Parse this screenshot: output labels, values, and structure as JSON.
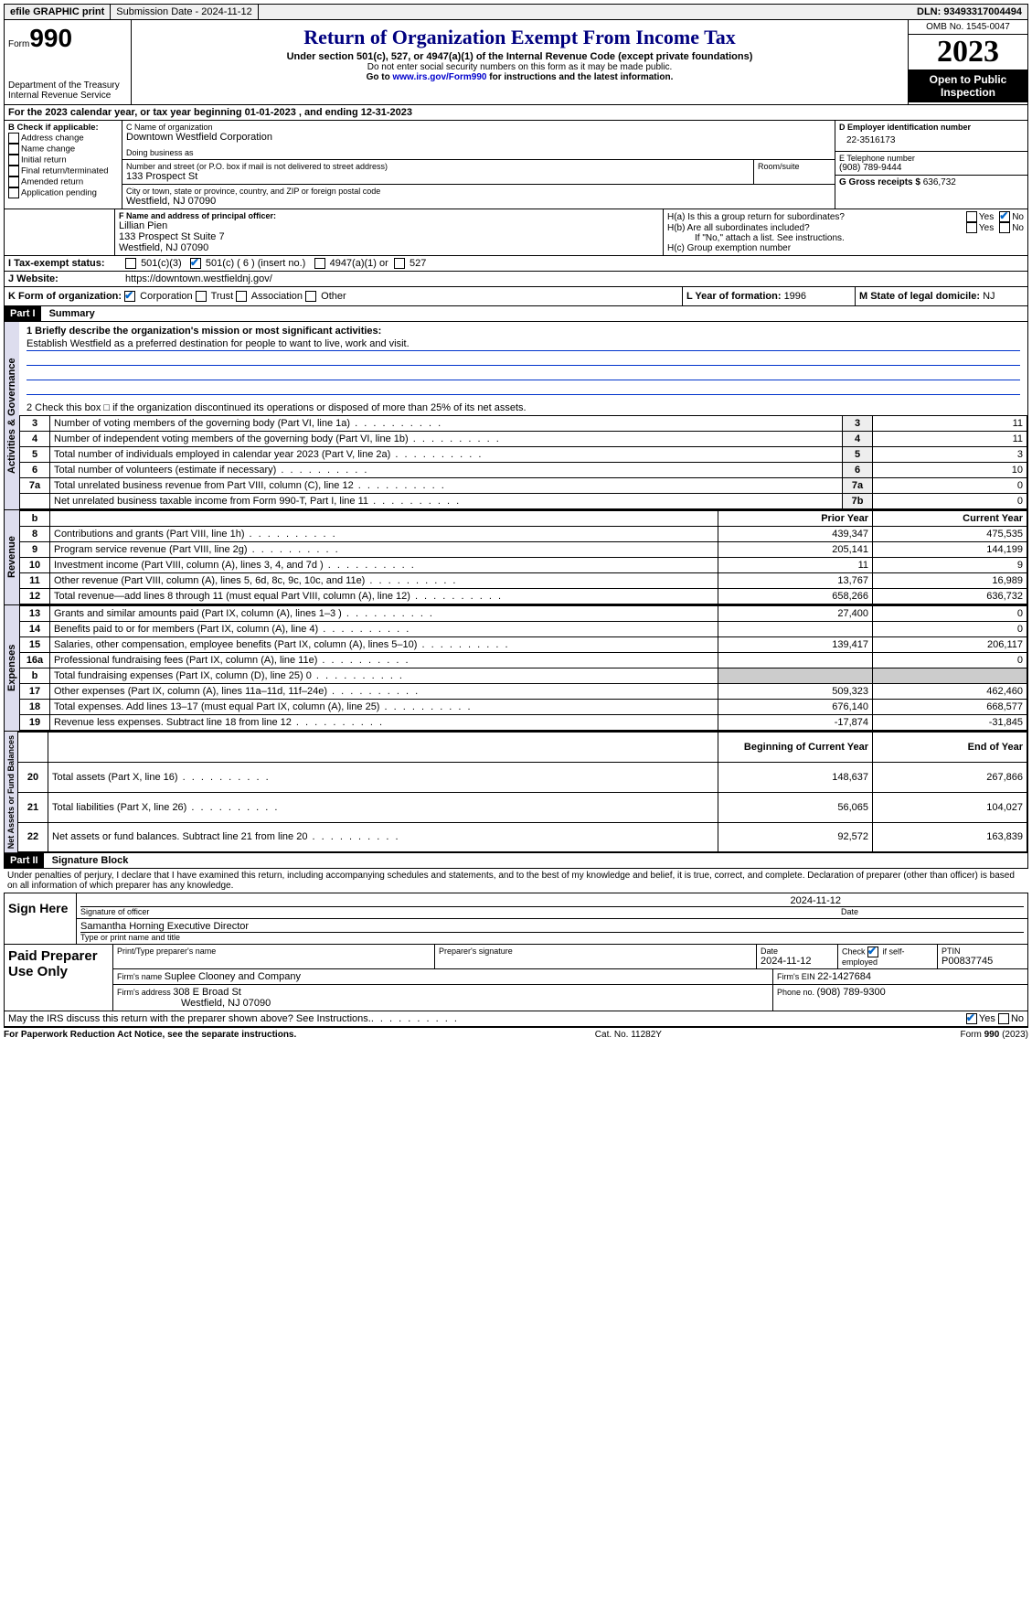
{
  "topbar": {
    "efile": "efile GRAPHIC print",
    "submission_label": "Submission Date - ",
    "submission_date": "2024-11-12",
    "dln_label": "DLN: ",
    "dln": "93493317004494"
  },
  "header": {
    "form_prefix": "Form",
    "form_number": "990",
    "dept": "Department of the Treasury Internal Revenue Service",
    "title": "Return of Organization Exempt From Income Tax",
    "sub": "Under section 501(c), 527, or 4947(a)(1) of the Internal Revenue Code (except private foundations)",
    "ssn_note": "Do not enter social security numbers on this form as it may be made public.",
    "goto": "Go to ",
    "goto_link": "www.irs.gov/Form990",
    "goto_suffix": " for instructions and the latest information.",
    "omb": "OMB No. 1545-0047",
    "year": "2023",
    "open": "Open to Public Inspection"
  },
  "periodA": "For the 2023 calendar year, or tax year beginning 01-01-2023   , and ending 12-31-2023",
  "boxB": {
    "title": "B Check if applicable:",
    "opts": [
      "Address change",
      "Name change",
      "Initial return",
      "Final return/terminated",
      "Amended return",
      "Application pending"
    ]
  },
  "boxC": {
    "name_label": "C Name of organization",
    "name": "Downtown Westfield Corporation",
    "dba_label": "Doing business as",
    "street_label": "Number and street (or P.O. box if mail is not delivered to street address)",
    "room_label": "Room/suite",
    "street": "133 Prospect St",
    "city_label": "City or town, state or province, country, and ZIP or foreign postal code",
    "city": "Westfield, NJ  07090"
  },
  "boxD": {
    "label": "D Employer identification number",
    "value": "22-3516173"
  },
  "boxE": {
    "label": "E Telephone number",
    "value": "(908) 789-9444"
  },
  "boxG": {
    "label": "G Gross receipts $ ",
    "value": "636,732"
  },
  "boxF": {
    "label": "F  Name and address of principal officer:",
    "name": "Lillian Pien",
    "addr1": "133 Prospect St Suite 7",
    "addr2": "Westfield, NJ  07090"
  },
  "boxH": {
    "a": "H(a)  Is this a group return for subordinates?",
    "b": "H(b)  Are all subordinates included?",
    "note": "If \"No,\" attach a list. See instructions.",
    "c": "H(c)  Group exemption number "
  },
  "taxExempt": {
    "label": "I  Tax-exempt status:",
    "c3": "501(c)(3)",
    "c": "501(c) ( 6 ) (insert no.)",
    "a": "4947(a)(1) or",
    "527": "527"
  },
  "website": {
    "label": "J  Website: ",
    "value": "https://downtown.westfieldnj.gov/"
  },
  "boxK": {
    "label": "K Form of organization:",
    "opts": [
      "Corporation",
      "Trust",
      "Association",
      "Other"
    ]
  },
  "boxL": {
    "label": "L Year of formation: ",
    "value": "1996"
  },
  "boxM": {
    "label": "M State of legal domicile: ",
    "value": "NJ"
  },
  "part1": {
    "bar": "Part I",
    "title": "Summary"
  },
  "mission": {
    "prompt": "1  Briefly describe the organization's mission or most significant activities:",
    "text": "Establish Westfield as a preferred destination for people to want to live, work and visit."
  },
  "line2": "2  Check this box  □  if the organization discontinued its operations or disposed of more than 25% of its net assets.",
  "gov_rows": [
    {
      "n": "3",
      "t": "Number of voting members of the governing body (Part VI, line 1a)",
      "rn": "3",
      "v": "11"
    },
    {
      "n": "4",
      "t": "Number of independent voting members of the governing body (Part VI, line 1b)",
      "rn": "4",
      "v": "11"
    },
    {
      "n": "5",
      "t": "Total number of individuals employed in calendar year 2023 (Part V, line 2a)",
      "rn": "5",
      "v": "3"
    },
    {
      "n": "6",
      "t": "Total number of volunteers (estimate if necessary)",
      "rn": "6",
      "v": "10"
    },
    {
      "n": "7a",
      "t": "Total unrelated business revenue from Part VIII, column (C), line 12",
      "rn": "7a",
      "v": "0"
    },
    {
      "n": "",
      "t": "Net unrelated business taxable income from Form 990-T, Part I, line 11",
      "rn": "7b",
      "v": "0"
    }
  ],
  "rev_header": {
    "b": "b",
    "prior": "Prior Year",
    "current": "Current Year"
  },
  "rev_rows": [
    {
      "n": "8",
      "t": "Contributions and grants (Part VIII, line 1h)",
      "p": "439,347",
      "c": "475,535"
    },
    {
      "n": "9",
      "t": "Program service revenue (Part VIII, line 2g)",
      "p": "205,141",
      "c": "144,199"
    },
    {
      "n": "10",
      "t": "Investment income (Part VIII, column (A), lines 3, 4, and 7d )",
      "p": "11",
      "c": "9"
    },
    {
      "n": "11",
      "t": "Other revenue (Part VIII, column (A), lines 5, 6d, 8c, 9c, 10c, and 11e)",
      "p": "13,767",
      "c": "16,989"
    },
    {
      "n": "12",
      "t": "Total revenue—add lines 8 through 11 (must equal Part VIII, column (A), line 12)",
      "p": "658,266",
      "c": "636,732"
    }
  ],
  "exp_rows": [
    {
      "n": "13",
      "t": "Grants and similar amounts paid (Part IX, column (A), lines 1–3 )",
      "p": "27,400",
      "c": "0"
    },
    {
      "n": "14",
      "t": "Benefits paid to or for members (Part IX, column (A), line 4)",
      "p": "",
      "c": "0"
    },
    {
      "n": "15",
      "t": "Salaries, other compensation, employee benefits (Part IX, column (A), lines 5–10)",
      "p": "139,417",
      "c": "206,117"
    },
    {
      "n": "16a",
      "t": "Professional fundraising fees (Part IX, column (A), line 11e)",
      "p": "",
      "c": "0"
    },
    {
      "n": "b",
      "t": "Total fundraising expenses (Part IX, column (D), line 25) 0",
      "p": "GRAY",
      "c": "GRAY"
    },
    {
      "n": "17",
      "t": "Other expenses (Part IX, column (A), lines 11a–11d, 11f–24e)",
      "p": "509,323",
      "c": "462,460"
    },
    {
      "n": "18",
      "t": "Total expenses. Add lines 13–17 (must equal Part IX, column (A), line 25)",
      "p": "676,140",
      "c": "668,577"
    },
    {
      "n": "19",
      "t": "Revenue less expenses. Subtract line 18 from line 12",
      "p": "-17,874",
      "c": "-31,845"
    }
  ],
  "net_header": {
    "prior": "Beginning of Current Year",
    "current": "End of Year"
  },
  "net_rows": [
    {
      "n": "20",
      "t": "Total assets (Part X, line 16)",
      "p": "148,637",
      "c": "267,866"
    },
    {
      "n": "21",
      "t": "Total liabilities (Part X, line 26)",
      "p": "56,065",
      "c": "104,027"
    },
    {
      "n": "22",
      "t": "Net assets or fund balances. Subtract line 21 from line 20",
      "p": "92,572",
      "c": "163,839"
    }
  ],
  "vlabels": {
    "gov": "Activities & Governance",
    "rev": "Revenue",
    "exp": "Expenses",
    "net": "Net Assets or Fund Balances"
  },
  "part2": {
    "bar": "Part II",
    "title": "Signature Block"
  },
  "perjury": "Under penalties of perjury, I declare that I have examined this return, including accompanying schedules and statements, and to the best of my knowledge and belief, it is true, correct, and complete. Declaration of preparer (other than officer) is based on all information of which preparer has any knowledge.",
  "sign": {
    "here": "Sign Here",
    "sig_label": "Signature of officer",
    "date_label": "Date",
    "date": "2024-11-12",
    "name": "Samantha Horning  Executive Director",
    "name_label": "Type or print name and title"
  },
  "preparer": {
    "here": "Paid Preparer Use Only",
    "print_label": "Print/Type preparer's name",
    "sig_label": "Preparer's signature",
    "date_label": "Date",
    "date": "2024-11-12",
    "check_label": "Check        if self-employed",
    "ptin_label": "PTIN",
    "ptin": "P00837745",
    "firm_name_label": "Firm's name   ",
    "firm_name": "Suplee Clooney and Company",
    "firm_ein_label": "Firm's EIN  ",
    "firm_ein": "22-1427684",
    "firm_addr_label": "Firm's address ",
    "firm_addr1": "308 E Broad St",
    "firm_addr2": "Westfield, NJ  07090",
    "phone_label": "Phone no. ",
    "phone": "(908) 789-9300"
  },
  "discuss": "May the IRS discuss this return with the preparer shown above? See Instructions.",
  "footer": {
    "left": "For Paperwork Reduction Act Notice, see the separate instructions.",
    "center": "Cat. No. 11282Y",
    "right_prefix": "Form ",
    "right_form": "990",
    "right_suffix": " (2023)"
  }
}
